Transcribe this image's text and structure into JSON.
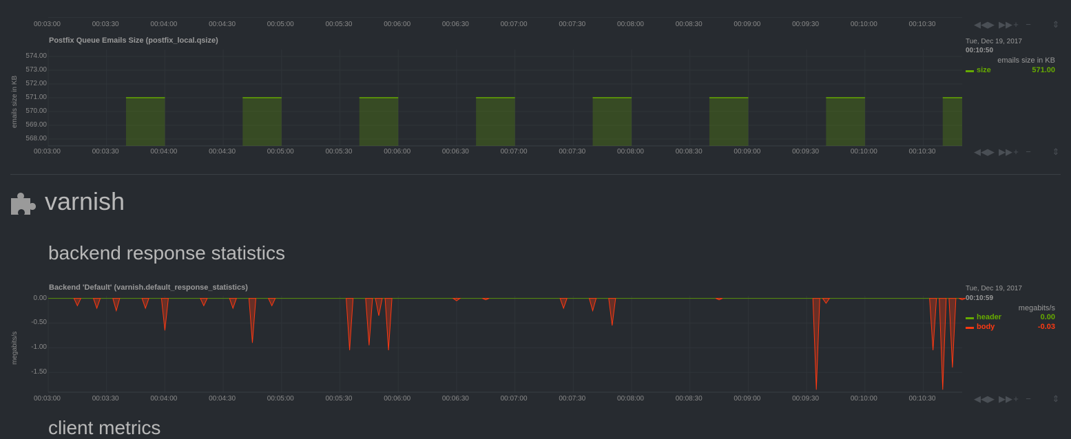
{
  "top_axis": {
    "ticks": [
      "00:03:00",
      "00:03:30",
      "00:04:00",
      "00:04:30",
      "00:05:00",
      "00:05:30",
      "00:06:00",
      "00:06:30",
      "00:07:00",
      "00:07:30",
      "00:08:00",
      "00:08:30",
      "00:09:00",
      "00:09:30",
      "00:10:00",
      "00:10:30"
    ]
  },
  "postfix_chart": {
    "title": "Postfix Queue Emails Size (postfix_local.qsize)",
    "ylabel": "emails size in KB",
    "legend": {
      "date": "Tue, Dec 19, 2017",
      "time": "00:10:50",
      "units": "emails size in KB",
      "series": [
        {
          "name": "size",
          "value": "571.00",
          "color": "#66aa00"
        }
      ]
    },
    "y_ticks": [
      "574.00",
      "573.00",
      "572.00",
      "571.00",
      "570.00",
      "569.00",
      "568.00"
    ],
    "x_ticks": [
      "00:03:00",
      "00:03:30",
      "00:04:00",
      "00:04:30",
      "00:05:00",
      "00:05:30",
      "00:06:00",
      "00:06:30",
      "00:07:00",
      "00:07:30",
      "00:08:00",
      "00:08:30",
      "00:09:00",
      "00:09:30",
      "00:10:00",
      "00:10:30"
    ]
  },
  "varnish_section": {
    "title": "varnish",
    "icon": "puzzle-icon",
    "subsection": "backend response statistics"
  },
  "varnish_chart": {
    "title": "Backend 'Default' (varnish.default_response_statistics)",
    "ylabel": "megabits/s",
    "legend": {
      "date": "Tue, Dec 19, 2017",
      "time": "00:10:59",
      "units": "megabits/s",
      "series": [
        {
          "name": "header",
          "value": "0.00",
          "color": "#66aa00"
        },
        {
          "name": "body",
          "value": "-0.03",
          "color": "#fe3912"
        }
      ]
    },
    "y_ticks": [
      "0.00",
      "-0.50",
      "-1.00",
      "-1.50"
    ],
    "x_ticks": [
      "00:03:00",
      "00:03:30",
      "00:04:00",
      "00:04:30",
      "00:05:00",
      "00:05:30",
      "00:06:00",
      "00:06:30",
      "00:07:00",
      "00:07:30",
      "00:08:00",
      "00:08:30",
      "00:09:00",
      "00:09:30",
      "00:10:00",
      "00:10:30"
    ]
  },
  "controls": {
    "icons": [
      "rewind-icon",
      "play-icon",
      "fast-forward-icon",
      "zoom-in-icon",
      "zoom-out-icon",
      "resize-icon"
    ],
    "glyphs": [
      "◀◀",
      "▶",
      "▶▶",
      "+",
      "−",
      "⇕"
    ]
  },
  "next_section_partial": "client metrics",
  "chart_data": [
    {
      "type": "area",
      "title": "Postfix Queue Emails Size (postfix_local.qsize)",
      "ylabel": "emails size in KB",
      "ylim": [
        567.5,
        574.5
      ],
      "x_range": [
        "00:03:00",
        "00:10:50"
      ],
      "series": [
        {
          "name": "size",
          "color": "#66aa00",
          "pulses": [
            {
              "start": "00:03:40",
              "end": "00:04:00",
              "value": 571
            },
            {
              "start": "00:04:40",
              "end": "00:05:00",
              "value": 571
            },
            {
              "start": "00:05:40",
              "end": "00:06:00",
              "value": 571
            },
            {
              "start": "00:06:40",
              "end": "00:07:00",
              "value": 571
            },
            {
              "start": "00:07:40",
              "end": "00:08:00",
              "value": 571
            },
            {
              "start": "00:08:40",
              "end": "00:09:00",
              "value": 571
            },
            {
              "start": "00:09:40",
              "end": "00:10:00",
              "value": 571
            },
            {
              "start": "00:10:40",
              "end": "00:10:50",
              "value": 571
            }
          ]
        }
      ]
    },
    {
      "type": "area",
      "title": "Backend 'Default' (varnish.default_response_statistics)",
      "ylabel": "megabits/s",
      "ylim": [
        -1.9,
        0.05
      ],
      "x_range": [
        "00:03:00",
        "00:10:50"
      ],
      "series": [
        {
          "name": "header",
          "color": "#66aa00",
          "approx_value": 0.0
        },
        {
          "name": "body",
          "color": "#fe3912",
          "dips": [
            {
              "t": "00:03:15",
              "v": -0.15
            },
            {
              "t": "00:03:25",
              "v": -0.2
            },
            {
              "t": "00:03:35",
              "v": -0.25
            },
            {
              "t": "00:03:50",
              "v": -0.2
            },
            {
              "t": "00:04:00",
              "v": -0.65
            },
            {
              "t": "00:04:20",
              "v": -0.15
            },
            {
              "t": "00:04:35",
              "v": -0.2
            },
            {
              "t": "00:04:45",
              "v": -0.9
            },
            {
              "t": "00:04:55",
              "v": -0.15
            },
            {
              "t": "00:05:35",
              "v": -1.05
            },
            {
              "t": "00:05:45",
              "v": -0.95
            },
            {
              "t": "00:05:55",
              "v": -1.05
            },
            {
              "t": "00:05:50",
              "v": -0.35
            },
            {
              "t": "00:06:30",
              "v": -0.05
            },
            {
              "t": "00:06:45",
              "v": -0.03
            },
            {
              "t": "00:07:25",
              "v": -0.2
            },
            {
              "t": "00:07:40",
              "v": -0.25
            },
            {
              "t": "00:07:50",
              "v": -0.55
            },
            {
              "t": "00:08:45",
              "v": -0.03
            },
            {
              "t": "00:09:35",
              "v": -1.85
            },
            {
              "t": "00:09:40",
              "v": -0.1
            },
            {
              "t": "00:10:35",
              "v": -1.05
            },
            {
              "t": "00:10:40",
              "v": -1.85
            },
            {
              "t": "00:10:45",
              "v": -1.4
            },
            {
              "t": "00:10:50",
              "v": -0.03
            }
          ]
        }
      ]
    }
  ]
}
